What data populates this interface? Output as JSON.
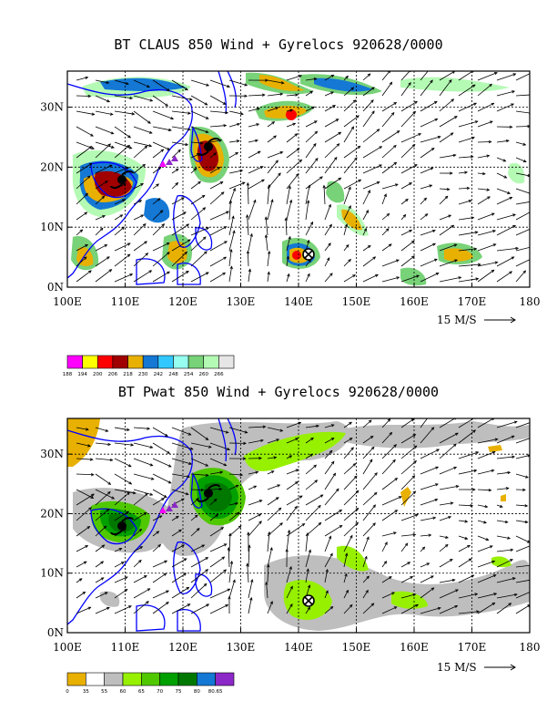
{
  "panels": [
    {
      "title": "BT CLAUS 850 Wind + Gyrelocs 920628/0000",
      "colorbar_labels": [
        "188",
        "194",
        "200",
        "206",
        "218",
        "230",
        "242",
        "248",
        "254",
        "260",
        "266"
      ],
      "colorbar_colors": [
        "#ff00ff",
        "#ffff00",
        "#ff0000",
        "#a00000",
        "#e8b000",
        "#1478d4",
        "#32c8ff",
        "#96fff0",
        "#78d278",
        "#b4fab4",
        "#e6e6e6"
      ]
    },
    {
      "title": "BT Pwat 850 Wind + Gyrelocs 920628/0000",
      "colorbar_labels": [
        "0",
        "35",
        "55",
        "60",
        "65",
        "70",
        "75",
        "80",
        "80.65"
      ],
      "colorbar_colors": [
        "#e8b000",
        "#ffffff",
        "#bebebe",
        "#96f000",
        "#50c800",
        "#00a000",
        "#007800",
        "#1478d4",
        "#8c28c8"
      ]
    }
  ],
  "axes": {
    "x_ticks": [
      "100E",
      "110E",
      "120E",
      "130E",
      "140E",
      "150E",
      "160E",
      "170E",
      "180"
    ],
    "y_ticks": [
      "0N",
      "10N",
      "20N",
      "30N"
    ],
    "lon_range": [
      100,
      180
    ],
    "lat_range": [
      0,
      36
    ]
  },
  "vector_scale_label": "15 M/S",
  "colors": {
    "coast": "#0000ff",
    "grid": "#000000"
  }
}
